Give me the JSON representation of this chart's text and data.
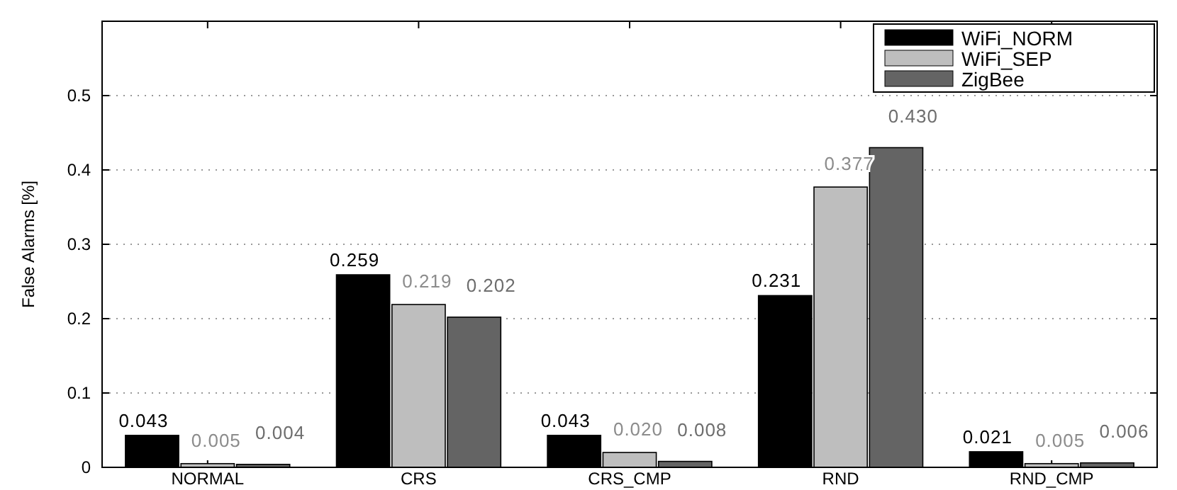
{
  "chart_data": {
    "type": "bar",
    "ylabel": "False Alarms [%]",
    "categories": [
      "NORMAL",
      "CRS",
      "CRS_CMP",
      "RND",
      "RND_CMP"
    ],
    "series": [
      {
        "name": "WiFi_NORM",
        "color": "#000000",
        "values": [
          0.043,
          0.259,
          0.043,
          0.231,
          0.021
        ],
        "value_labels": [
          "0.043",
          "0.259",
          "0.043",
          "0.231",
          "0.021"
        ]
      },
      {
        "name": "WiFi_SEP",
        "color": "#bebebe",
        "values": [
          0.005,
          0.219,
          0.02,
          0.377,
          0.005
        ],
        "value_labels": [
          "0.005",
          "0.219",
          "0.020",
          "0.377",
          "0.005"
        ]
      },
      {
        "name": "ZigBee",
        "color": "#646464",
        "values": [
          0.004,
          0.202,
          0.008,
          0.43,
          0.006
        ],
        "value_labels": [
          "0.004",
          "0.202",
          "0.008",
          "0.430",
          "0.006"
        ]
      }
    ],
    "ylim": [
      0,
      0.6
    ],
    "yticks": [
      0,
      0.1,
      0.2,
      0.3,
      0.4,
      0.5,
      {
        "value": 0.6,
        "label": null
      }
    ],
    "grid": "y",
    "legend": "top right"
  }
}
